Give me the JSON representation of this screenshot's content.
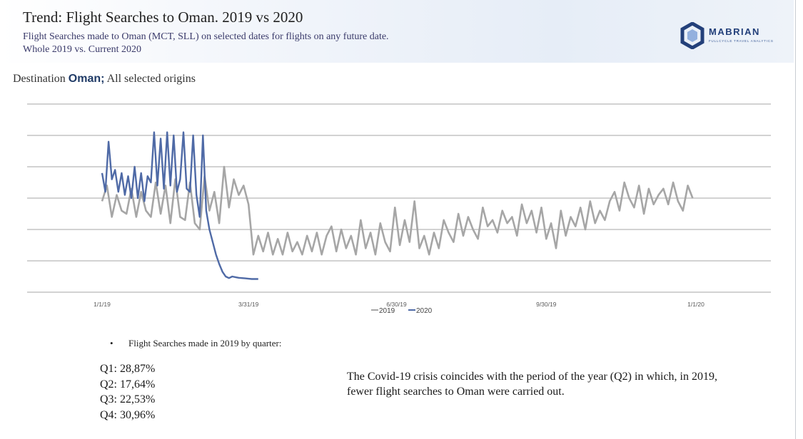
{
  "header": {
    "title": "Trend: Flight Searches to Oman. 2019 vs 2020",
    "subtitle_line1": "Flight Searches made to Oman (MCT, SLL) on selected dates for flights on any future date.",
    "subtitle_line2": "Whole 2019 vs. Current 2020"
  },
  "logo": {
    "name": "MABRIAN",
    "tagline": "FULLCYCLE TRAVEL ANALYTICS",
    "icon": "hexagon-logo-icon",
    "color": "#23407a"
  },
  "destination": {
    "prefix": "Destination",
    "name": "Oman;",
    "suffix": "All selected origins"
  },
  "chart_data": {
    "type": "line",
    "title": "",
    "xlabel": "",
    "ylabel": "",
    "x_ticks": [
      "1/1/19",
      "3/31/19",
      "6/30/19",
      "9/30/19",
      "1/1/20"
    ],
    "x_range_days": [
      0,
      365
    ],
    "ylim": [
      0,
      6
    ],
    "y_gridlines": 7,
    "legend_position": "bottom-center",
    "series": [
      {
        "name": "2019",
        "color": "#a6a6a6",
        "days": [
          0,
          3,
          6,
          9,
          12,
          15,
          18,
          21,
          24,
          27,
          30,
          33,
          36,
          39,
          42,
          45,
          48,
          51,
          54,
          57,
          60,
          63,
          66,
          69,
          72,
          75,
          78,
          81,
          84,
          87,
          90,
          93,
          96,
          99,
          102,
          105,
          108,
          111,
          114,
          117,
          120,
          123,
          126,
          129,
          132,
          135,
          138,
          141,
          144,
          147,
          150,
          153,
          156,
          159,
          162,
          165,
          168,
          171,
          174,
          177,
          180,
          183,
          186,
          189,
          192,
          195,
          198,
          201,
          204,
          207,
          210,
          213,
          216,
          219,
          222,
          225,
          228,
          231,
          234,
          237,
          240,
          243,
          246,
          249,
          252,
          255,
          258,
          261,
          264,
          267,
          270,
          273,
          276,
          279,
          282,
          285,
          288,
          291,
          294,
          297,
          300,
          303,
          306,
          309,
          312,
          315,
          318,
          321,
          324,
          327,
          330,
          333,
          336,
          339,
          342,
          345,
          348,
          351,
          354,
          357,
          360,
          363
        ],
        "values": [
          2.9,
          3.4,
          2.4,
          3.1,
          2.6,
          2.5,
          3.3,
          2.4,
          3.2,
          2.6,
          2.4,
          3.5,
          2.5,
          3.4,
          2.2,
          3.6,
          2.4,
          2.3,
          3.5,
          2.2,
          2.0,
          3.7,
          2.6,
          3.2,
          2.2,
          4.0,
          2.7,
          3.6,
          3.1,
          3.4,
          2.8,
          1.2,
          1.8,
          1.3,
          1.9,
          1.2,
          1.7,
          1.2,
          1.9,
          1.3,
          1.6,
          1.2,
          1.8,
          1.3,
          1.9,
          1.2,
          1.8,
          2.1,
          1.3,
          2.0,
          1.4,
          1.8,
          1.2,
          2.3,
          1.4,
          1.9,
          1.2,
          2.2,
          1.6,
          1.3,
          2.7,
          1.5,
          2.3,
          1.6,
          2.9,
          1.4,
          1.8,
          1.2,
          1.9,
          1.4,
          2.3,
          1.9,
          1.6,
          2.5,
          1.8,
          2.4,
          2.0,
          1.7,
          2.7,
          2.1,
          2.3,
          1.9,
          2.6,
          2.2,
          2.4,
          1.8,
          2.8,
          2.2,
          2.6,
          1.9,
          2.7,
          1.7,
          2.2,
          1.4,
          2.6,
          1.8,
          2.4,
          2.1,
          2.7,
          2.0,
          2.9,
          2.2,
          2.6,
          2.3,
          2.9,
          3.2,
          2.6,
          3.5,
          3.0,
          2.7,
          3.4,
          2.5,
          3.3,
          2.8,
          3.1,
          3.3,
          2.8,
          3.5,
          2.9,
          2.6,
          3.4,
          3.0
        ]
      },
      {
        "name": "2020",
        "color": "#4f6aa6",
        "days": [
          0,
          2,
          4,
          6,
          8,
          10,
          12,
          14,
          16,
          18,
          20,
          22,
          24,
          26,
          28,
          30,
          32,
          34,
          36,
          38,
          40,
          42,
          44,
          46,
          48,
          50,
          52,
          54,
          56,
          58,
          60,
          62,
          64,
          66,
          68,
          70,
          72,
          74,
          76,
          78,
          80,
          82,
          84,
          86,
          88,
          90,
          92,
          94,
          96
        ],
        "values": [
          3.8,
          3.2,
          4.8,
          3.6,
          3.9,
          3.2,
          3.8,
          3.1,
          3.7,
          3.0,
          4.0,
          3.0,
          3.8,
          2.9,
          3.7,
          3.5,
          5.1,
          3.4,
          4.9,
          3.3,
          5.1,
          3.4,
          5.0,
          3.2,
          3.6,
          5.1,
          3.3,
          3.2,
          5.0,
          3.1,
          2.4,
          5.0,
          2.6,
          2.0,
          1.6,
          1.2,
          0.9,
          0.65,
          0.5,
          0.45,
          0.5,
          0.48,
          0.46,
          0.45,
          0.44,
          0.43,
          0.42,
          0.42,
          0.42
        ]
      }
    ]
  },
  "summary": {
    "bullet_symbol": "•",
    "bullet_text": "Flight Searches made in 2019 by quarter:",
    "quarters": [
      "Q1: 28,87%",
      "Q2: 17,64%",
      "Q3: 22,53%",
      "Q4: 30,96%"
    ],
    "note": "The Covid-19 crisis coincides with the period of the year (Q2) in which, in 2019, fewer flight searches to Oman were carried out."
  }
}
